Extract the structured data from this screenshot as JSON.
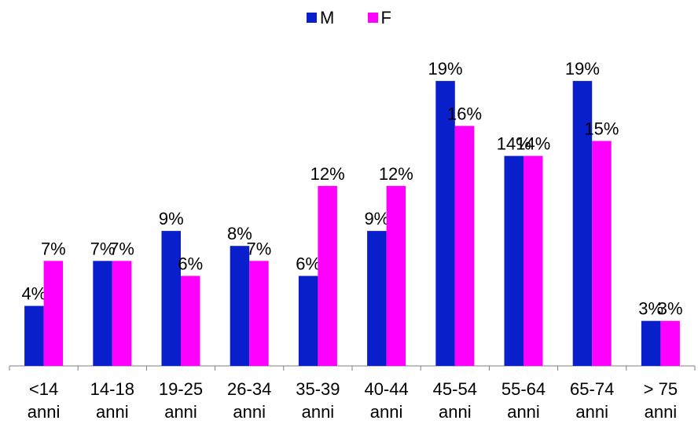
{
  "chart_data": {
    "type": "bar",
    "categories": [
      [
        "<14",
        "anni"
      ],
      [
        "14-18",
        "anni"
      ],
      [
        "19-25",
        "anni"
      ],
      [
        "26-34",
        "anni"
      ],
      [
        "35-39",
        "anni"
      ],
      [
        "40-44",
        "anni"
      ],
      [
        "45-54",
        "anni"
      ],
      [
        "55-64",
        "anni"
      ],
      [
        "65-74",
        "anni"
      ],
      [
        "> 75",
        "anni"
      ]
    ],
    "series": [
      {
        "name": "M",
        "color": "#0a1fcc",
        "values": [
          4,
          7,
          9,
          8,
          6,
          9,
          19,
          14,
          19,
          3
        ]
      },
      {
        "name": "F",
        "color": "#ff00ff",
        "values": [
          7,
          7,
          6,
          7,
          12,
          12,
          16,
          14,
          15,
          3
        ]
      }
    ],
    "value_suffix": "%",
    "ylim": [
      0,
      22
    ],
    "grid": false,
    "legend": "top-center"
  }
}
